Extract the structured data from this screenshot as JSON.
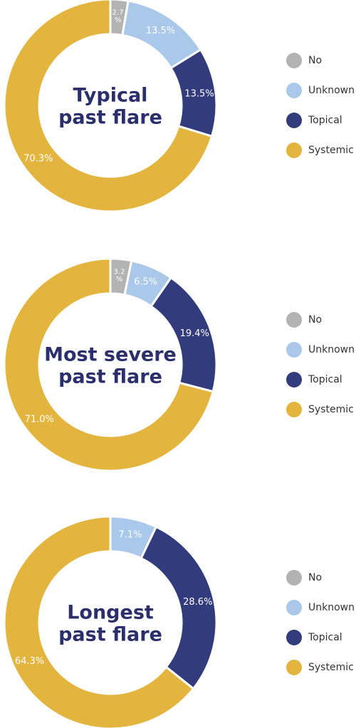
{
  "colors": {
    "No": "#b3b3b3",
    "Unknown": "#a9c8ea",
    "Topical": "#323b7c",
    "Systemic": "#e3b53e",
    "title": "#2b2f6b"
  },
  "chart_data": [
    {
      "type": "pie",
      "title_lines": [
        "Typical",
        "past flare"
      ],
      "categories": [
        "No",
        "Unknown",
        "Topical",
        "Systemic"
      ],
      "values": [
        2.7,
        13.5,
        13.5,
        70.3
      ],
      "labels": [
        "2.7 %",
        "13.5%",
        "13.5%",
        "70.3%"
      ],
      "legend": [
        "No",
        "Unknown",
        "Topical",
        "Systemic"
      ],
      "legend_position": "right"
    },
    {
      "type": "pie",
      "title_lines": [
        "Most severe",
        "past flare"
      ],
      "categories": [
        "No",
        "Unknown",
        "Topical",
        "Systemic"
      ],
      "values": [
        3.2,
        6.5,
        19.4,
        71.0
      ],
      "labels": [
        "3.2 %",
        "6.5%",
        "19.4%",
        "71.0%"
      ],
      "legend": [
        "No",
        "Unknown",
        "Topical",
        "Systemic"
      ],
      "legend_position": "right"
    },
    {
      "type": "pie",
      "title_lines": [
        "Longest",
        "past flare"
      ],
      "categories": [
        "No",
        "Unknown",
        "Topical",
        "Systemic"
      ],
      "values": [
        0,
        7.1,
        28.6,
        64.3
      ],
      "labels": [
        "",
        "7.1%",
        "28.6%",
        "64.3%"
      ],
      "legend": [
        "No",
        "Unknown",
        "Topical",
        "Systemic"
      ],
      "legend_position": "right"
    }
  ]
}
